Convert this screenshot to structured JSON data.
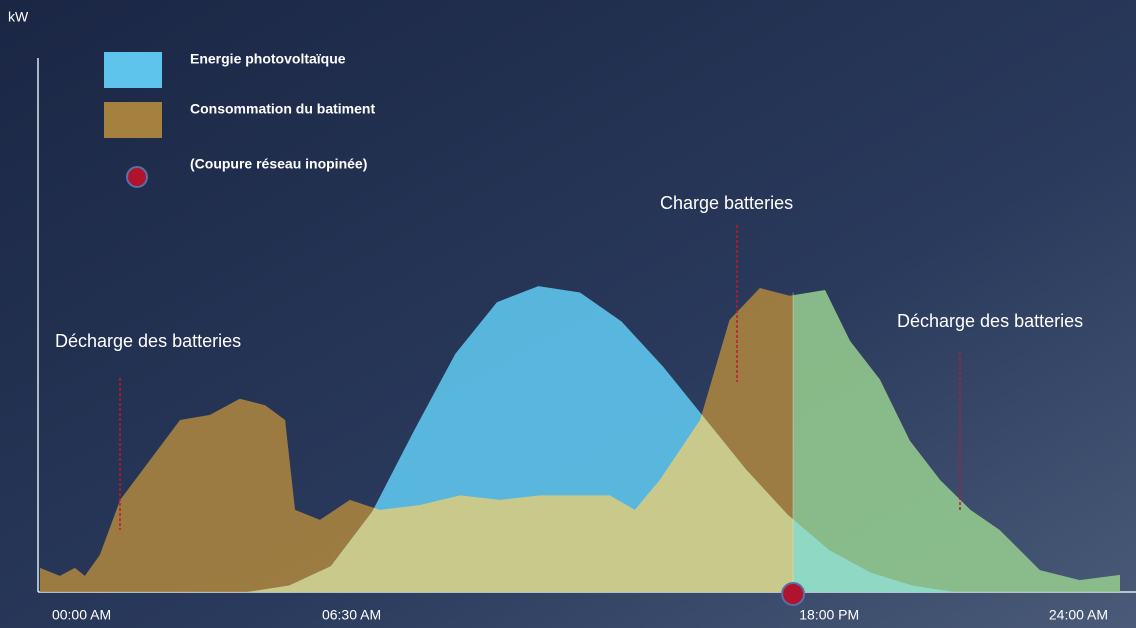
{
  "chart_data": {
    "type": "area",
    "y_label": "kW",
    "xlim": [
      -1,
      25
    ],
    "ylim": [
      0,
      100
    ],
    "xticks": [
      {
        "value": 0,
        "label": "00:00 AM"
      },
      {
        "value": 6.5,
        "label": "06:30 AM"
      },
      {
        "value": 18,
        "label": "18:00 PM"
      },
      {
        "value": 24,
        "label": "24:00 AM"
      }
    ],
    "overlap_color": "#c9c98c",
    "series": [
      {
        "name": "Energie photovoltaïque",
        "color": "#5ec4ec",
        "x": [
          4,
          5,
          6,
          7,
          8,
          9,
          10,
          11,
          12,
          13,
          14,
          15,
          16,
          17,
          18,
          19,
          20,
          21
        ],
        "values": [
          0,
          2,
          8,
          25,
          50,
          74,
          90,
          95,
          93,
          84,
          70,
          54,
          38,
          24,
          13,
          6,
          2,
          0
        ]
      },
      {
        "name": "Consommation du batiment",
        "color": "#a5813f",
        "x": [
          -1,
          -0.52,
          -0.16,
          0.08,
          0.44,
          0.93,
          1.65,
          2.37,
          3.09,
          3.81,
          4.42,
          4.9,
          5.14,
          5.74,
          6.46,
          7.18,
          8.15,
          9.11,
          10.07,
          11.03,
          12,
          12.72,
          13.32,
          13.92,
          14.89,
          15.6,
          16.33,
          17.05,
          17.9,
          18.5,
          19.22,
          19.94,
          20.67,
          21.4,
          22.1,
          23.07,
          24.03,
          25
        ],
        "values": [
          7.5,
          5,
          7.5,
          5,
          11.5,
          28.6,
          41,
          53.4,
          55,
          60,
          58,
          53.4,
          25.5,
          22.4,
          28.6,
          25.5,
          27,
          30,
          28.6,
          30,
          30,
          30,
          25.5,
          34.8,
          53.4,
          84.5,
          94.4,
          92,
          93.8,
          78,
          66,
          47,
          34.8,
          25.5,
          19.3,
          6.8,
          3.7,
          5.3
        ]
      }
    ],
    "outage": {
      "name": "(Coupure réseau inopinée)",
      "color": "#b0142c",
      "x": 17.13,
      "after_color": "#8fc58c",
      "after_overlap_color": "#8fd9c4"
    },
    "annotations": [
      "Décharge des batteries",
      "Charge batteries",
      "Décharge des batteries"
    ]
  }
}
